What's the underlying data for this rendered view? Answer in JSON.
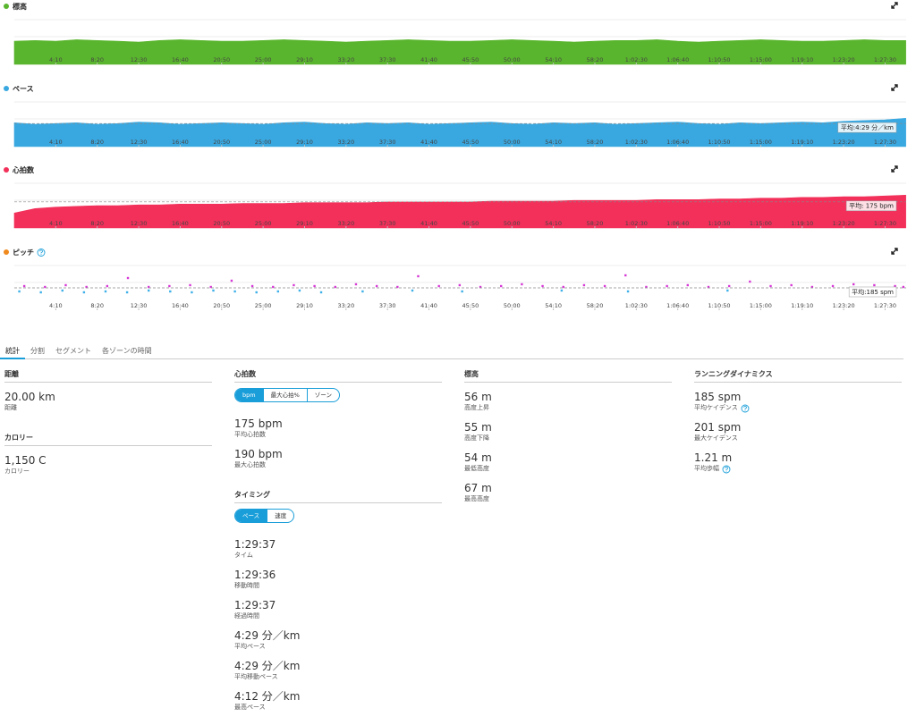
{
  "chart_data": [
    {
      "type": "area",
      "title": "標高",
      "color": "#5ab52e",
      "x": [
        0,
        125,
        250,
        375,
        500,
        625,
        750,
        875,
        1000,
        1125,
        1250,
        1375,
        1500,
        1625,
        1750,
        1875,
        2000,
        2125,
        2250,
        2375,
        2500,
        2625,
        2750,
        2875,
        3000,
        3125,
        3250,
        3375,
        3500,
        3625,
        3750,
        3875,
        4000,
        4125,
        4250,
        4375,
        4500,
        4625,
        4750,
        4875,
        5000,
        5125,
        5250,
        5375
      ],
      "values": [
        60,
        61,
        60,
        62,
        61,
        60,
        59,
        61,
        62,
        61,
        60,
        60,
        61,
        62,
        61,
        60,
        59,
        60,
        61,
        62,
        61,
        60,
        60,
        61,
        62,
        61,
        60,
        59,
        60,
        61,
        61,
        62,
        60,
        59,
        60,
        61,
        62,
        61,
        60,
        60,
        61,
        62,
        61,
        61
      ],
      "xlim": [
        0,
        5377
      ],
      "ylim": [
        30,
        88
      ],
      "xticks": [
        {
          "value": 250,
          "label": "4:10"
        },
        {
          "value": 500,
          "label": "8:20"
        },
        {
          "value": 750,
          "label": "12:30"
        },
        {
          "value": 1000,
          "label": "16:40"
        },
        {
          "value": 1250,
          "label": "20:50"
        },
        {
          "value": 1500,
          "label": "25:00"
        },
        {
          "value": 1750,
          "label": "29:10"
        },
        {
          "value": 2000,
          "label": "33:20"
        },
        {
          "value": 2250,
          "label": "37:30"
        },
        {
          "value": 2500,
          "label": "41:40"
        },
        {
          "value": 2750,
          "label": "45:50"
        },
        {
          "value": 3000,
          "label": "50:00"
        },
        {
          "value": 3250,
          "label": "54:10"
        },
        {
          "value": 3500,
          "label": "58:20"
        },
        {
          "value": 3750,
          "label": "1:02:30"
        },
        {
          "value": 4000,
          "label": "1:06:40"
        },
        {
          "value": 4250,
          "label": "1:10:50"
        },
        {
          "value": 4500,
          "label": "1:15:00"
        },
        {
          "value": 4750,
          "label": "1:19:10"
        },
        {
          "value": 5000,
          "label": "1:23:20"
        },
        {
          "value": 5250,
          "label": "1:27:30"
        }
      ]
    },
    {
      "type": "area",
      "title": "ペース",
      "color": "#3aa8e0",
      "x": [
        0,
        125,
        250,
        375,
        500,
        625,
        750,
        875,
        1000,
        1125,
        1250,
        1375,
        1500,
        1625,
        1750,
        1875,
        2000,
        2125,
        2250,
        2375,
        2500,
        2625,
        2750,
        2875,
        3000,
        3125,
        3250,
        3375,
        3500,
        3625,
        3750,
        3875,
        4000,
        4125,
        4250,
        4375,
        4500,
        4625,
        4750,
        4875,
        5000,
        5125,
        5250,
        5375
      ],
      "values": [
        268,
        270,
        269,
        268,
        270,
        269,
        267,
        268,
        270,
        269,
        268,
        269,
        270,
        268,
        267,
        269,
        270,
        268,
        269,
        268,
        270,
        269,
        268,
        267,
        269,
        270,
        268,
        269,
        268,
        270,
        269,
        268,
        267,
        269,
        270,
        268,
        269,
        268,
        267,
        268,
        266,
        265,
        264,
        262
      ],
      "xlim": [
        0,
        5377
      ],
      "ylim": [
        300,
        240
      ],
      "avg": {
        "value": 269,
        "label": "平均:4:29 分／km"
      },
      "xticks": [
        {
          "value": 250,
          "label": "4:10"
        },
        {
          "value": 500,
          "label": "8:20"
        },
        {
          "value": 750,
          "label": "12:30"
        },
        {
          "value": 1000,
          "label": "16:40"
        },
        {
          "value": 1250,
          "label": "20:50"
        },
        {
          "value": 1500,
          "label": "25:00"
        },
        {
          "value": 1750,
          "label": "29:10"
        },
        {
          "value": 2000,
          "label": "33:20"
        },
        {
          "value": 2250,
          "label": "37:30"
        },
        {
          "value": 2500,
          "label": "41:40"
        },
        {
          "value": 2750,
          "label": "45:50"
        },
        {
          "value": 3000,
          "label": "50:00"
        },
        {
          "value": 3250,
          "label": "54:10"
        },
        {
          "value": 3500,
          "label": "58:20"
        },
        {
          "value": 3750,
          "label": "1:02:30"
        },
        {
          "value": 4000,
          "label": "1:06:40"
        },
        {
          "value": 4250,
          "label": "1:10:50"
        },
        {
          "value": 4500,
          "label": "1:15:00"
        },
        {
          "value": 4750,
          "label": "1:19:10"
        },
        {
          "value": 5000,
          "label": "1:23:20"
        },
        {
          "value": 5250,
          "label": "1:27:30"
        }
      ]
    },
    {
      "type": "area",
      "title": "心拍数",
      "color": "#f2305a",
      "x": [
        0,
        125,
        250,
        375,
        500,
        625,
        750,
        875,
        1000,
        1125,
        1250,
        1375,
        1500,
        1625,
        1750,
        1875,
        2000,
        2125,
        2250,
        2375,
        2500,
        2625,
        2750,
        2875,
        3000,
        3125,
        3250,
        3375,
        3500,
        3625,
        3750,
        3875,
        4000,
        4125,
        4250,
        4375,
        4500,
        4625,
        4750,
        4875,
        5000,
        5125,
        5250,
        5375
      ],
      "values": [
        160,
        166,
        168,
        169,
        170,
        170,
        171,
        171,
        172,
        172,
        172,
        173,
        173,
        173,
        174,
        174,
        174,
        174,
        175,
        175,
        175,
        175,
        175,
        176,
        176,
        176,
        176,
        177,
        177,
        177,
        177,
        178,
        178,
        178,
        179,
        179,
        180,
        180,
        181,
        181,
        182,
        182,
        183,
        184
      ],
      "xlim": [
        0,
        5377
      ],
      "ylim": [
        140,
        200
      ],
      "avg": {
        "value": 175,
        "label": "平均: 175 bpm"
      },
      "xticks": [
        {
          "value": 250,
          "label": "4:10"
        },
        {
          "value": 500,
          "label": "8:20"
        },
        {
          "value": 750,
          "label": "12:30"
        },
        {
          "value": 1000,
          "label": "16:40"
        },
        {
          "value": 1250,
          "label": "20:50"
        },
        {
          "value": 1500,
          "label": "25:00"
        },
        {
          "value": 1750,
          "label": "29:10"
        },
        {
          "value": 2000,
          "label": "33:20"
        },
        {
          "value": 2250,
          "label": "37:30"
        },
        {
          "value": 2500,
          "label": "41:40"
        },
        {
          "value": 2750,
          "label": "45:50"
        },
        {
          "value": 3000,
          "label": "50:00"
        },
        {
          "value": 3250,
          "label": "54:10"
        },
        {
          "value": 3500,
          "label": "58:20"
        },
        {
          "value": 3750,
          "label": "1:02:30"
        },
        {
          "value": 4000,
          "label": "1:06:40"
        },
        {
          "value": 4250,
          "label": "1:10:50"
        },
        {
          "value": 4500,
          "label": "1:15:00"
        },
        {
          "value": 4750,
          "label": "1:19:10"
        },
        {
          "value": 5000,
          "label": "1:23:20"
        },
        {
          "value": 5250,
          "label": "1:27:30"
        }
      ]
    },
    {
      "type": "scatter",
      "title": "ピッチ",
      "color": "#f08a1e",
      "help": true,
      "series": [
        {
          "color": "#d63ad6",
          "x": [
            60,
            185,
            310,
            435,
            560,
            685,
            810,
            935,
            1060,
            1185,
            1310,
            1435,
            1560,
            1685,
            1810,
            1935,
            2060,
            2185,
            2310,
            2435,
            2560,
            2685,
            2810,
            2935,
            3060,
            3185,
            3310,
            3435,
            3560,
            3685,
            3810,
            3935,
            4060,
            4185,
            4310,
            4435,
            4560,
            4685,
            4810,
            4935,
            5060,
            5185,
            5310,
            5360
          ],
          "values": [
            187,
            186,
            188,
            186,
            187,
            196,
            186,
            187,
            188,
            186,
            193,
            187,
            186,
            188,
            187,
            186,
            189,
            187,
            186,
            198,
            187,
            188,
            186,
            187,
            189,
            187,
            186,
            188,
            187,
            199,
            186,
            187,
            188,
            186,
            187,
            192,
            187,
            188,
            186,
            187,
            189,
            188,
            187,
            186
          ]
        },
        {
          "color": "#3fb0e8",
          "x": [
            30,
            160,
            290,
            420,
            550,
            680,
            810,
            940,
            1070,
            1200,
            1330,
            1460,
            1590,
            1720,
            1850,
            2100,
            2400,
            2700,
            3300,
            3700,
            4300,
            5200
          ],
          "values": [
            181,
            180,
            182,
            180,
            181,
            180,
            182,
            181,
            180,
            182,
            181,
            180,
            181,
            182,
            180,
            181,
            182,
            181,
            182,
            181,
            182,
            181
          ]
        }
      ],
      "xlim": [
        0,
        5377
      ],
      "ylim": [
        160,
        210
      ],
      "avg": {
        "value": 185,
        "label": "平均:185 spm"
      },
      "xticks": [
        {
          "value": 250,
          "label": "4:10"
        },
        {
          "value": 500,
          "label": "8:20"
        },
        {
          "value": 750,
          "label": "12:30"
        },
        {
          "value": 1000,
          "label": "16:40"
        },
        {
          "value": 1250,
          "label": "20:50"
        },
        {
          "value": 1500,
          "label": "25:00"
        },
        {
          "value": 1750,
          "label": "29:10"
        },
        {
          "value": 2000,
          "label": "33:20"
        },
        {
          "value": 2250,
          "label": "37:30"
        },
        {
          "value": 2500,
          "label": "41:40"
        },
        {
          "value": 2750,
          "label": "45:50"
        },
        {
          "value": 3000,
          "label": "50:00"
        },
        {
          "value": 3250,
          "label": "54:10"
        },
        {
          "value": 3500,
          "label": "58:20"
        },
        {
          "value": 3750,
          "label": "1:02:30"
        },
        {
          "value": 4000,
          "label": "1:06:40"
        },
        {
          "value": 4250,
          "label": "1:10:50"
        },
        {
          "value": 4500,
          "label": "1:15:00"
        },
        {
          "value": 4750,
          "label": "1:19:10"
        },
        {
          "value": 5000,
          "label": "1:23:20"
        },
        {
          "value": 5250,
          "label": "1:27:30"
        }
      ]
    }
  ],
  "tabs": [
    "統計",
    "分割",
    "セグメント",
    "各ゾーンの時間"
  ],
  "columns": [
    [
      {
        "title": "距離",
        "items": [
          {
            "value": "20.00 km",
            "label": "距離"
          }
        ]
      },
      {
        "title": "カロリー",
        "items": [
          {
            "value": "1,150 C",
            "label": "カロリー"
          }
        ]
      }
    ],
    [
      {
        "title": "心拍数",
        "buttons": [
          "bpm",
          "最大心拍%",
          "ゾーン"
        ],
        "items": [
          {
            "value": "175 bpm",
            "label": "平均心拍数"
          },
          {
            "value": "190 bpm",
            "label": "最大心拍数"
          }
        ]
      },
      {
        "title": "タイミング",
        "buttons": [
          "ペース",
          "速度"
        ],
        "items": [
          {
            "value": "1:29:37",
            "label": "タイム"
          },
          {
            "value": "1:29:36",
            "label": "移動時間"
          },
          {
            "value": "1:29:37",
            "label": "経過時間"
          },
          {
            "value": "4:29 分／km",
            "label": "平均ペース"
          },
          {
            "value": "4:29 分／km",
            "label": "平均移動ペース"
          },
          {
            "value": "4:12 分／km",
            "label": "最高ペース"
          }
        ]
      }
    ],
    [
      {
        "title": "標高",
        "items": [
          {
            "value": "56 m",
            "label": "高度上昇"
          },
          {
            "value": "55 m",
            "label": "高度下降"
          },
          {
            "value": "54 m",
            "label": "最低高度"
          },
          {
            "value": "67 m",
            "label": "最高高度"
          }
        ]
      }
    ],
    [
      {
        "title": "ランニングダイナミクス",
        "items": [
          {
            "value": "185 spm",
            "label": "平均ケイデンス",
            "help": true
          },
          {
            "value": "201 spm",
            "label": "最大ケイデンス"
          },
          {
            "value": "1.21 m",
            "label": "平均歩幅",
            "help": true
          }
        ]
      }
    ]
  ]
}
